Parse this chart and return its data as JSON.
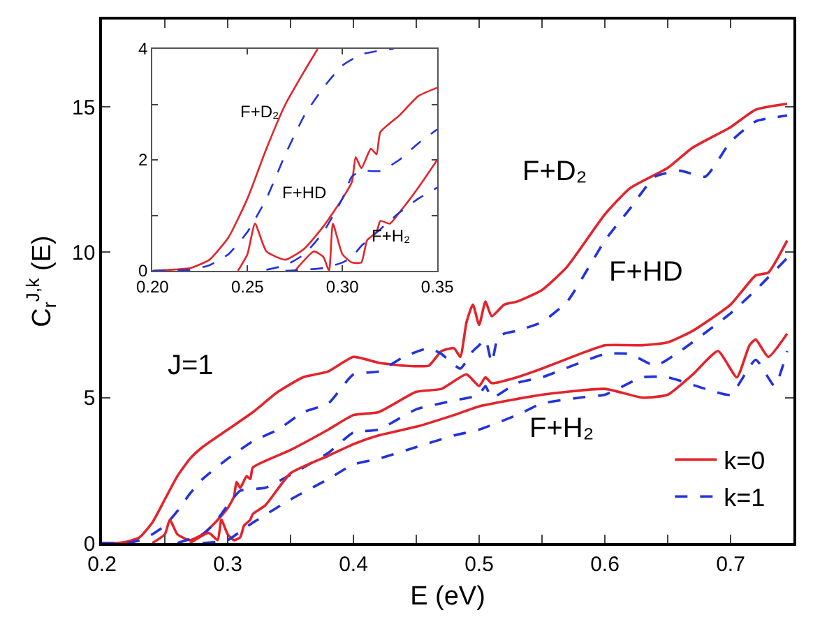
{
  "chart_data": [
    {
      "type": "line",
      "xlabel": "E (eV)",
      "ylabel": "C$_{r}$$^{J,k}$ (E)",
      "xlim": [
        0.2,
        0.75
      ],
      "ylim": [
        0,
        18
      ],
      "xticks": [
        0.2,
        {
          "value": 0.25,
          "label": null
        },
        0.3,
        {
          "value": 0.35,
          "label": null
        },
        0.4,
        {
          "value": 0.45,
          "label": null
        },
        0.5,
        {
          "value": 0.55,
          "label": null
        },
        0.6,
        {
          "value": 0.65,
          "label": null
        },
        0.7
      ],
      "yticks": [
        0,
        5,
        10,
        15
      ],
      "legend": "bottom right",
      "annotations": [
        "J=1",
        "F+D₂",
        "F+HD",
        "F+H₂"
      ],
      "series": [
        {
          "name": "k=0",
          "color": "#e3242b",
          "line_style": "solid",
          "x": [
            0.2,
            0.21,
            0.22,
            0.23,
            0.24,
            0.25,
            0.26,
            0.27,
            0.28,
            0.3,
            0.32,
            0.34,
            0.36,
            0.38,
            0.4,
            0.42,
            0.44,
            0.46,
            0.47,
            0.48,
            0.485,
            0.49,
            0.495,
            0.5,
            0.505,
            0.51,
            0.52,
            0.53,
            0.55,
            0.57,
            0.6,
            0.62,
            0.65,
            0.67,
            0.7,
            0.72,
            0.745
          ],
          "values": [
            0,
            0,
            0.05,
            0.2,
            0.7,
            1.5,
            2.3,
            2.9,
            3.3,
            3.9,
            4.5,
            5.2,
            5.7,
            5.9,
            6.4,
            6.2,
            6.1,
            6.1,
            6.6,
            6.7,
            6.4,
            7.6,
            8.2,
            7.5,
            8.3,
            7.8,
            8.2,
            8.3,
            8.7,
            9.5,
            11.3,
            12.2,
            12.9,
            13.6,
            14.3,
            14.9,
            15.1
          ]
        },
        {
          "name": "k=1",
          "color": "#2233dd",
          "line_style": "dashed",
          "x": [
            0.2,
            0.22,
            0.23,
            0.24,
            0.25,
            0.26,
            0.27,
            0.28,
            0.3,
            0.32,
            0.34,
            0.36,
            0.38,
            0.4,
            0.42,
            0.44,
            0.46,
            0.47,
            0.485,
            0.495,
            0.5,
            0.505,
            0.51,
            0.515,
            0.52,
            0.53,
            0.55,
            0.57,
            0.6,
            0.62,
            0.64,
            0.66,
            0.68,
            0.7,
            0.72,
            0.745
          ],
          "values": [
            0,
            0,
            0.1,
            0.3,
            0.6,
            1.1,
            1.7,
            2.2,
            2.9,
            3.5,
            3.9,
            4.5,
            4.8,
            5.8,
            5.9,
            6.4,
            6.7,
            6.5,
            6.0,
            6.6,
            6.8,
            7.0,
            6.2,
            7.1,
            7.2,
            7.3,
            7.6,
            8.3,
            10.4,
            11.5,
            12.6,
            12.8,
            12.6,
            13.8,
            14.5,
            14.7
          ]
        },
        {
          "color": "#e3242b",
          "line_style": "solid",
          "x": [
            0.24,
            0.25,
            0.254,
            0.26,
            0.27,
            0.28,
            0.29,
            0.3,
            0.305,
            0.307,
            0.31,
            0.315,
            0.318,
            0.32,
            0.35,
            0.38,
            0.4,
            0.42,
            0.45,
            0.47,
            0.49,
            0.5,
            0.505,
            0.51,
            0.53,
            0.55,
            0.58,
            0.6,
            0.63,
            0.65,
            0.67,
            0.7,
            0.72,
            0.73,
            0.745
          ],
          "values": [
            0,
            0.3,
            0.8,
            0.3,
            0.1,
            0.3,
            0.7,
            1.2,
            1.6,
            2.1,
            1.9,
            2.3,
            2.2,
            2.6,
            3.2,
            3.9,
            4.4,
            4.5,
            5.2,
            5.3,
            5.8,
            5.4,
            5.7,
            5.5,
            5.7,
            6.0,
            6.5,
            6.8,
            6.8,
            6.9,
            7.3,
            8.2,
            9.2,
            9.3,
            10.4
          ]
        },
        {
          "color": "#2233dd",
          "line_style": "dashed",
          "x": [
            0.26,
            0.28,
            0.29,
            0.3,
            0.31,
            0.33,
            0.35,
            0.38,
            0.4,
            0.42,
            0.45,
            0.48,
            0.5,
            0.505,
            0.51,
            0.53,
            0.55,
            0.6,
            0.62,
            0.64,
            0.66,
            0.7,
            0.72,
            0.745
          ],
          "values": [
            0,
            0.3,
            0.7,
            1.3,
            1.8,
            1.9,
            2.35,
            3.1,
            3.8,
            3.9,
            4.6,
            4.9,
            5.1,
            5.4,
            5.0,
            5.5,
            5.7,
            6.5,
            6.5,
            6.1,
            6.6,
            7.9,
            8.7,
            9.8
          ]
        },
        {
          "color": "#e3242b",
          "line_style": "solid",
          "x": [
            0.27,
            0.285,
            0.292,
            0.295,
            0.3,
            0.305,
            0.31,
            0.313,
            0.318,
            0.32,
            0.33,
            0.35,
            0.38,
            0.4,
            0.42,
            0.45,
            0.48,
            0.5,
            0.55,
            0.6,
            0.63,
            0.65,
            0.67,
            0.69,
            0.705,
            0.715,
            0.72,
            0.73,
            0.745
          ],
          "values": [
            0,
            0.35,
            0.1,
            0.8,
            0.3,
            0.1,
            0.2,
            0.6,
            0.8,
            1.0,
            1.3,
            2.4,
            3.0,
            3.4,
            3.7,
            4.0,
            4.4,
            4.7,
            5.1,
            5.3,
            5.0,
            5.1,
            5.8,
            6.6,
            5.7,
            6.8,
            7.0,
            6.4,
            7.2
          ]
        },
        {
          "color": "#2233dd",
          "line_style": "dashed",
          "x": [
            0.28,
            0.3,
            0.31,
            0.32,
            0.35,
            0.38,
            0.4,
            0.42,
            0.45,
            0.48,
            0.5,
            0.53,
            0.55,
            0.58,
            0.6,
            0.63,
            0.65,
            0.68,
            0.7,
            0.72,
            0.735,
            0.745
          ],
          "values": [
            0,
            0.1,
            0.4,
            0.7,
            1.5,
            2.2,
            2.7,
            2.9,
            3.3,
            3.7,
            3.9,
            4.4,
            4.8,
            5.0,
            5.1,
            5.7,
            5.7,
            5.3,
            5.1,
            6.3,
            5.4,
            6.6
          ]
        }
      ]
    },
    {
      "type": "line",
      "xlim": [
        0.2,
        0.35
      ],
      "ylim": [
        0,
        4
      ],
      "xticks": [
        {
          "value": 0.2,
          "label": "0.20"
        },
        0.25,
        {
          "value": 0.3,
          "label": "0.30"
        },
        0.35
      ],
      "yticks": [
        0,
        {
          "value": 1,
          "label": null
        },
        2,
        {
          "value": 3,
          "label": null
        },
        4
      ],
      "annotations": [
        "F+D₂",
        "F+HD",
        "F+H₂"
      ],
      "series": [
        {
          "color": "#e3242b",
          "line_style": "solid",
          "x": [
            0.2,
            0.21,
            0.22,
            0.23,
            0.24,
            0.25,
            0.26,
            0.27,
            0.28,
            0.287
          ],
          "values": [
            0,
            0.02,
            0.05,
            0.2,
            0.6,
            1.3,
            2.2,
            3.0,
            3.6,
            4.0
          ]
        },
        {
          "color": "#2233dd",
          "line_style": "dashed",
          "x": [
            0.2,
            0.22,
            0.23,
            0.24,
            0.25,
            0.26,
            0.27,
            0.28,
            0.29,
            0.3,
            0.31,
            0.32,
            0.327
          ],
          "values": [
            0,
            0.02,
            0.1,
            0.3,
            0.7,
            1.3,
            2.1,
            2.8,
            3.3,
            3.7,
            3.9,
            3.97,
            4.0
          ]
        },
        {
          "color": "#e3242b",
          "line_style": "solid",
          "x": [
            0.245,
            0.25,
            0.254,
            0.26,
            0.27,
            0.28,
            0.29,
            0.3,
            0.305,
            0.307,
            0.31,
            0.315,
            0.318,
            0.32,
            0.33,
            0.34,
            0.35
          ],
          "values": [
            0,
            0.3,
            0.85,
            0.35,
            0.2,
            0.4,
            0.8,
            1.3,
            1.6,
            2.05,
            1.85,
            2.2,
            2.1,
            2.5,
            2.8,
            3.15,
            3.3
          ]
        },
        {
          "color": "#2233dd",
          "line_style": "dashed",
          "x": [
            0.26,
            0.27,
            0.28,
            0.29,
            0.3,
            0.305,
            0.31,
            0.32,
            0.33,
            0.34,
            0.35
          ],
          "values": [
            0.02,
            0.1,
            0.3,
            0.7,
            1.3,
            1.7,
            1.8,
            1.8,
            2.0,
            2.3,
            2.55
          ]
        },
        {
          "color": "#e3242b",
          "line_style": "solid",
          "x": [
            0.275,
            0.285,
            0.29,
            0.293,
            0.295,
            0.3,
            0.305,
            0.31,
            0.313,
            0.318,
            0.32,
            0.325,
            0.33,
            0.34,
            0.35
          ],
          "values": [
            0,
            0.35,
            0.25,
            0,
            0.85,
            0.3,
            0.15,
            0.15,
            0.55,
            0.7,
            0.9,
            0.85,
            1.05,
            1.5,
            2.0
          ]
        },
        {
          "color": "#2233dd",
          "line_style": "dashed",
          "x": [
            0.27,
            0.28,
            0.29,
            0.3,
            0.305,
            0.31,
            0.32,
            0.33,
            0.34,
            0.35
          ],
          "values": [
            0,
            0.02,
            0.05,
            0.15,
            0.25,
            0.45,
            0.75,
            1.05,
            1.3,
            1.5
          ]
        }
      ]
    }
  ]
}
